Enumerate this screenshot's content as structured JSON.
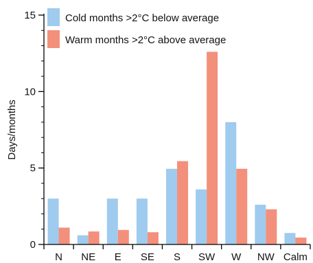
{
  "chart_data": {
    "type": "bar",
    "categories": [
      "N",
      "NE",
      "E",
      "SE",
      "S",
      "SW",
      "W",
      "NW",
      "Calm"
    ],
    "series": [
      {
        "name": "Cold months >2°C below average",
        "color": "#9fcbee",
        "values": [
          3.0,
          0.6,
          3.0,
          3.0,
          4.95,
          3.6,
          8.0,
          2.6,
          0.75
        ]
      },
      {
        "name": "Warm months >2°C above average",
        "color": "#f3907b",
        "values": [
          1.1,
          0.85,
          0.95,
          0.8,
          5.45,
          12.6,
          4.95,
          2.3,
          0.45
        ]
      }
    ],
    "title": "",
    "xlabel": "",
    "ylabel": "Days/months",
    "ylim": [
      0,
      15
    ],
    "yticks": [
      0,
      5,
      10,
      15
    ],
    "yminor_step": 1,
    "legend_position": "top-left",
    "grid": false
  }
}
